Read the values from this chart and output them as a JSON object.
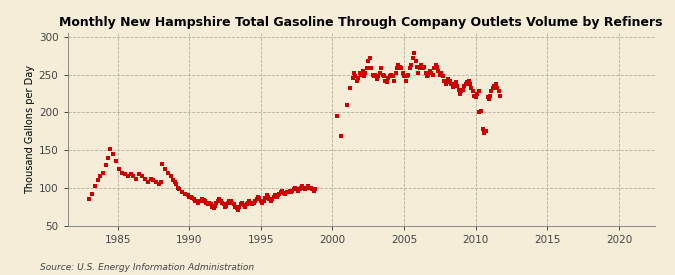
{
  "title": "Monthly New Hampshire Total Gasoline Through Company Outlets Volume by Refiners",
  "ylabel": "Thousand Gallons per Day",
  "source": "Source: U.S. Energy Information Administration",
  "background_color": "#f5edd8",
  "plot_bg_color": "#f5edd8",
  "marker_color": "#cc0000",
  "xlim": [
    1981.5,
    2022.5
  ],
  "ylim": [
    50,
    305
  ],
  "xticks": [
    1985,
    1990,
    1995,
    2000,
    2005,
    2010,
    2015,
    2020
  ],
  "yticks": [
    50,
    100,
    150,
    200,
    250,
    300
  ],
  "data": [
    [
      1983.0,
      85
    ],
    [
      1983.2,
      92
    ],
    [
      1983.4,
      102
    ],
    [
      1983.6,
      110
    ],
    [
      1983.8,
      115
    ],
    [
      1984.0,
      120
    ],
    [
      1984.2,
      130
    ],
    [
      1984.3,
      140
    ],
    [
      1984.5,
      152
    ],
    [
      1984.7,
      145
    ],
    [
      1984.9,
      135
    ],
    [
      1985.1,
      125
    ],
    [
      1985.3,
      120
    ],
    [
      1985.5,
      118
    ],
    [
      1985.7,
      115
    ],
    [
      1985.9,
      118
    ],
    [
      1986.1,
      115
    ],
    [
      1986.3,
      112
    ],
    [
      1986.5,
      118
    ],
    [
      1986.7,
      115
    ],
    [
      1986.9,
      112
    ],
    [
      1987.1,
      108
    ],
    [
      1987.3,
      112
    ],
    [
      1987.5,
      110
    ],
    [
      1987.7,
      108
    ],
    [
      1987.9,
      105
    ],
    [
      1988.0,
      108
    ],
    [
      1988.1,
      132
    ],
    [
      1988.3,
      125
    ],
    [
      1988.5,
      120
    ],
    [
      1988.7,
      115
    ],
    [
      1988.9,
      110
    ],
    [
      1989.0,
      108
    ],
    [
      1989.1,
      105
    ],
    [
      1989.2,
      100
    ],
    [
      1989.3,
      98
    ],
    [
      1989.5,
      95
    ],
    [
      1989.7,
      92
    ],
    [
      1989.9,
      90
    ],
    [
      1990.0,
      88
    ],
    [
      1990.1,
      88
    ],
    [
      1990.2,
      86
    ],
    [
      1990.3,
      85
    ],
    [
      1990.4,
      83
    ],
    [
      1990.5,
      82
    ],
    [
      1990.6,
      80
    ],
    [
      1990.7,
      82
    ],
    [
      1990.8,
      83
    ],
    [
      1990.9,
      85
    ],
    [
      1991.0,
      84
    ],
    [
      1991.1,
      82
    ],
    [
      1991.2,
      80
    ],
    [
      1991.3,
      78
    ],
    [
      1991.4,
      80
    ],
    [
      1991.5,
      78
    ],
    [
      1991.6,
      75
    ],
    [
      1991.7,
      73
    ],
    [
      1991.8,
      76
    ],
    [
      1991.9,
      80
    ],
    [
      1992.0,
      82
    ],
    [
      1992.1,
      85
    ],
    [
      1992.2,
      82
    ],
    [
      1992.3,
      80
    ],
    [
      1992.4,
      78
    ],
    [
      1992.5,
      75
    ],
    [
      1992.6,
      76
    ],
    [
      1992.7,
      80
    ],
    [
      1992.8,
      83
    ],
    [
      1992.9,
      82
    ],
    [
      1993.0,
      80
    ],
    [
      1993.1,
      78
    ],
    [
      1993.2,
      75
    ],
    [
      1993.3,
      73
    ],
    [
      1993.4,
      70
    ],
    [
      1993.5,
      75
    ],
    [
      1993.6,
      78
    ],
    [
      1993.7,
      80
    ],
    [
      1993.8,
      77
    ],
    [
      1993.9,
      74
    ],
    [
      1994.0,
      78
    ],
    [
      1994.1,
      80
    ],
    [
      1994.2,
      82
    ],
    [
      1994.3,
      80
    ],
    [
      1994.4,
      78
    ],
    [
      1994.5,
      80
    ],
    [
      1994.6,
      82
    ],
    [
      1994.7,
      85
    ],
    [
      1994.8,
      88
    ],
    [
      1994.9,
      86
    ],
    [
      1995.0,
      82
    ],
    [
      1995.1,
      80
    ],
    [
      1995.2,
      82
    ],
    [
      1995.3,
      86
    ],
    [
      1995.4,
      90
    ],
    [
      1995.5,
      88
    ],
    [
      1995.6,
      85
    ],
    [
      1995.7,
      83
    ],
    [
      1995.8,
      85
    ],
    [
      1995.9,
      88
    ],
    [
      1996.0,
      90
    ],
    [
      1996.1,
      88
    ],
    [
      1996.2,
      90
    ],
    [
      1996.3,
      92
    ],
    [
      1996.4,
      94
    ],
    [
      1996.5,
      96
    ],
    [
      1996.6,
      93
    ],
    [
      1996.7,
      92
    ],
    [
      1996.8,
      94
    ],
    [
      1997.0,
      96
    ],
    [
      1997.1,
      94
    ],
    [
      1997.2,
      96
    ],
    [
      1997.3,
      98
    ],
    [
      1997.4,
      100
    ],
    [
      1997.5,
      98
    ],
    [
      1997.6,
      96
    ],
    [
      1997.7,
      98
    ],
    [
      1997.8,
      100
    ],
    [
      1997.9,
      102
    ],
    [
      1998.0,
      100
    ],
    [
      1998.1,
      98
    ],
    [
      1998.2,
      100
    ],
    [
      1998.3,
      102
    ],
    [
      1998.5,
      100
    ],
    [
      1998.6,
      98
    ],
    [
      1998.7,
      96
    ],
    [
      1998.8,
      98
    ],
    [
      2000.3,
      195
    ],
    [
      2000.6,
      168
    ],
    [
      2001.0,
      210
    ],
    [
      2001.2,
      232
    ],
    [
      2001.4,
      245
    ],
    [
      2001.5,
      252
    ],
    [
      2001.6,
      248
    ],
    [
      2001.7,
      242
    ],
    [
      2001.8,
      246
    ],
    [
      2001.9,
      252
    ],
    [
      2002.0,
      250
    ],
    [
      2002.1,
      255
    ],
    [
      2002.2,
      248
    ],
    [
      2002.3,
      252
    ],
    [
      2002.4,
      258
    ],
    [
      2002.5,
      268
    ],
    [
      2002.6,
      272
    ],
    [
      2002.7,
      258
    ],
    [
      2002.8,
      250
    ],
    [
      2002.9,
      248
    ],
    [
      2003.0,
      250
    ],
    [
      2003.1,
      244
    ],
    [
      2003.2,
      248
    ],
    [
      2003.3,
      252
    ],
    [
      2003.4,
      258
    ],
    [
      2003.5,
      250
    ],
    [
      2003.6,
      248
    ],
    [
      2003.7,
      242
    ],
    [
      2003.8,
      240
    ],
    [
      2003.9,
      245
    ],
    [
      2004.0,
      248
    ],
    [
      2004.1,
      250
    ],
    [
      2004.2,
      248
    ],
    [
      2004.3,
      242
    ],
    [
      2004.4,
      252
    ],
    [
      2004.5,
      258
    ],
    [
      2004.6,
      262
    ],
    [
      2004.7,
      260
    ],
    [
      2004.8,
      258
    ],
    [
      2004.9,
      252
    ],
    [
      2005.0,
      248
    ],
    [
      2005.1,
      242
    ],
    [
      2005.2,
      248
    ],
    [
      2005.3,
      250
    ],
    [
      2005.4,
      258
    ],
    [
      2005.5,
      262
    ],
    [
      2005.6,
      272
    ],
    [
      2005.7,
      278
    ],
    [
      2005.8,
      268
    ],
    [
      2005.9,
      260
    ],
    [
      2006.0,
      252
    ],
    [
      2006.1,
      258
    ],
    [
      2006.2,
      262
    ],
    [
      2006.3,
      258
    ],
    [
      2006.4,
      260
    ],
    [
      2006.5,
      252
    ],
    [
      2006.6,
      248
    ],
    [
      2006.7,
      250
    ],
    [
      2006.8,
      255
    ],
    [
      2006.9,
      252
    ],
    [
      2007.0,
      250
    ],
    [
      2007.1,
      258
    ],
    [
      2007.2,
      262
    ],
    [
      2007.3,
      260
    ],
    [
      2007.4,
      255
    ],
    [
      2007.5,
      250
    ],
    [
      2007.6,
      252
    ],
    [
      2007.7,
      248
    ],
    [
      2007.8,
      242
    ],
    [
      2007.9,
      238
    ],
    [
      2008.0,
      240
    ],
    [
      2008.1,
      244
    ],
    [
      2008.2,
      242
    ],
    [
      2008.3,
      238
    ],
    [
      2008.4,
      234
    ],
    [
      2008.5,
      238
    ],
    [
      2008.6,
      240
    ],
    [
      2008.7,
      235
    ],
    [
      2008.8,
      230
    ],
    [
      2008.9,
      224
    ],
    [
      2009.0,
      228
    ],
    [
      2009.1,
      230
    ],
    [
      2009.2,
      235
    ],
    [
      2009.3,
      238
    ],
    [
      2009.4,
      240
    ],
    [
      2009.5,
      242
    ],
    [
      2009.6,
      238
    ],
    [
      2009.7,
      232
    ],
    [
      2009.8,
      228
    ],
    [
      2009.9,
      222
    ],
    [
      2010.0,
      220
    ],
    [
      2010.1,
      224
    ],
    [
      2010.2,
      228
    ],
    [
      2010.25,
      200
    ],
    [
      2010.35,
      202
    ],
    [
      2010.5,
      178
    ],
    [
      2010.6,
      172
    ],
    [
      2010.7,
      175
    ],
    [
      2010.85,
      220
    ],
    [
      2010.95,
      218
    ],
    [
      2011.0,
      222
    ],
    [
      2011.1,
      228
    ],
    [
      2011.2,
      232
    ],
    [
      2011.3,
      235
    ],
    [
      2011.4,
      238
    ],
    [
      2011.5,
      232
    ],
    [
      2011.6,
      228
    ],
    [
      2011.7,
      222
    ]
  ]
}
